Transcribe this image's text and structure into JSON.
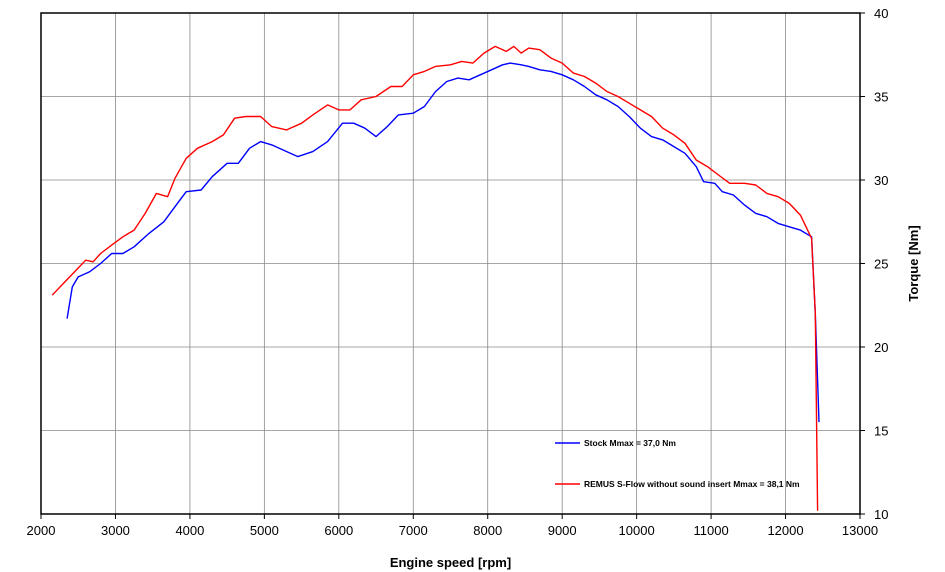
{
  "chart_data": {
    "type": "line",
    "xlabel": "Engine speed [rpm]",
    "ylabel": "Torque [Nm]",
    "xlim": [
      2000,
      13000
    ],
    "ylim": [
      10,
      40
    ],
    "x_ticks": [
      2000,
      3000,
      4000,
      5000,
      6000,
      7000,
      8000,
      9000,
      10000,
      11000,
      12000,
      13000
    ],
    "y_ticks": [
      10,
      15,
      20,
      25,
      30,
      35,
      40
    ],
    "y_axis_side": "right",
    "grid": true,
    "legend_position": "lower-right",
    "series": [
      {
        "name": "Stock Mmax = 37,0 Nm",
        "color": "#0000ff",
        "points": [
          [
            2350,
            21.7
          ],
          [
            2420,
            23.6
          ],
          [
            2500,
            24.2
          ],
          [
            2650,
            24.5
          ],
          [
            2800,
            25.0
          ],
          [
            2950,
            25.6
          ],
          [
            3100,
            25.6
          ],
          [
            3250,
            26.0
          ],
          [
            3450,
            26.8
          ],
          [
            3650,
            27.5
          ],
          [
            3850,
            28.7
          ],
          [
            3950,
            29.3
          ],
          [
            4150,
            29.4
          ],
          [
            4300,
            30.2
          ],
          [
            4500,
            31.0
          ],
          [
            4650,
            31.0
          ],
          [
            4800,
            31.9
          ],
          [
            4950,
            32.3
          ],
          [
            5100,
            32.1
          ],
          [
            5300,
            31.7
          ],
          [
            5450,
            31.4
          ],
          [
            5650,
            31.7
          ],
          [
            5850,
            32.3
          ],
          [
            6050,
            33.4
          ],
          [
            6200,
            33.4
          ],
          [
            6350,
            33.1
          ],
          [
            6500,
            32.6
          ],
          [
            6650,
            33.2
          ],
          [
            6800,
            33.9
          ],
          [
            7000,
            34.0
          ],
          [
            7150,
            34.4
          ],
          [
            7300,
            35.3
          ],
          [
            7450,
            35.9
          ],
          [
            7600,
            36.1
          ],
          [
            7750,
            36.0
          ],
          [
            7900,
            36.3
          ],
          [
            8050,
            36.6
          ],
          [
            8200,
            36.9
          ],
          [
            8300,
            37.0
          ],
          [
            8450,
            36.9
          ],
          [
            8550,
            36.8
          ],
          [
            8700,
            36.6
          ],
          [
            8850,
            36.5
          ],
          [
            9000,
            36.3
          ],
          [
            9150,
            36.0
          ],
          [
            9300,
            35.6
          ],
          [
            9450,
            35.1
          ],
          [
            9600,
            34.8
          ],
          [
            9750,
            34.4
          ],
          [
            9900,
            33.8
          ],
          [
            10050,
            33.1
          ],
          [
            10200,
            32.6
          ],
          [
            10350,
            32.4
          ],
          [
            10500,
            32.0
          ],
          [
            10650,
            31.6
          ],
          [
            10800,
            30.8
          ],
          [
            10900,
            29.9
          ],
          [
            11050,
            29.8
          ],
          [
            11150,
            29.3
          ],
          [
            11300,
            29.1
          ],
          [
            11450,
            28.5
          ],
          [
            11600,
            28.0
          ],
          [
            11750,
            27.8
          ],
          [
            11900,
            27.4
          ],
          [
            12050,
            27.2
          ],
          [
            12200,
            27.0
          ],
          [
            12350,
            26.6
          ],
          [
            12400,
            22.0
          ],
          [
            12450,
            15.5
          ]
        ]
      },
      {
        "name": "REMUS S-Flow without sound insert Mmax = 38,1 Nm",
        "color": "#ff0000",
        "points": [
          [
            2150,
            23.1
          ],
          [
            2300,
            23.8
          ],
          [
            2450,
            24.5
          ],
          [
            2600,
            25.2
          ],
          [
            2700,
            25.1
          ],
          [
            2800,
            25.6
          ],
          [
            2950,
            26.1
          ],
          [
            3100,
            26.6
          ],
          [
            3250,
            27.0
          ],
          [
            3400,
            28.0
          ],
          [
            3550,
            29.2
          ],
          [
            3700,
            29.0
          ],
          [
            3800,
            30.1
          ],
          [
            3950,
            31.3
          ],
          [
            4100,
            31.9
          ],
          [
            4300,
            32.3
          ],
          [
            4450,
            32.7
          ],
          [
            4600,
            33.7
          ],
          [
            4750,
            33.8
          ],
          [
            4950,
            33.8
          ],
          [
            5100,
            33.2
          ],
          [
            5300,
            33.0
          ],
          [
            5500,
            33.4
          ],
          [
            5650,
            33.9
          ],
          [
            5850,
            34.5
          ],
          [
            6000,
            34.2
          ],
          [
            6150,
            34.2
          ],
          [
            6300,
            34.8
          ],
          [
            6500,
            35.0
          ],
          [
            6700,
            35.6
          ],
          [
            6850,
            35.6
          ],
          [
            7000,
            36.3
          ],
          [
            7150,
            36.5
          ],
          [
            7300,
            36.8
          ],
          [
            7500,
            36.9
          ],
          [
            7650,
            37.1
          ],
          [
            7800,
            37.0
          ],
          [
            7950,
            37.6
          ],
          [
            8100,
            38.0
          ],
          [
            8250,
            37.7
          ],
          [
            8350,
            38.0
          ],
          [
            8450,
            37.6
          ],
          [
            8550,
            37.9
          ],
          [
            8700,
            37.8
          ],
          [
            8850,
            37.3
          ],
          [
            9000,
            37.0
          ],
          [
            9150,
            36.4
          ],
          [
            9300,
            36.2
          ],
          [
            9450,
            35.8
          ],
          [
            9600,
            35.3
          ],
          [
            9750,
            35.0
          ],
          [
            9900,
            34.6
          ],
          [
            10050,
            34.2
          ],
          [
            10200,
            33.8
          ],
          [
            10350,
            33.1
          ],
          [
            10500,
            32.7
          ],
          [
            10650,
            32.2
          ],
          [
            10800,
            31.2
          ],
          [
            10950,
            30.8
          ],
          [
            11100,
            30.3
          ],
          [
            11250,
            29.8
          ],
          [
            11450,
            29.8
          ],
          [
            11600,
            29.7
          ],
          [
            11750,
            29.2
          ],
          [
            11900,
            29.0
          ],
          [
            12050,
            28.6
          ],
          [
            12200,
            27.9
          ],
          [
            12350,
            26.5
          ],
          [
            12400,
            22.0
          ],
          [
            12430,
            10.2
          ]
        ]
      }
    ]
  }
}
